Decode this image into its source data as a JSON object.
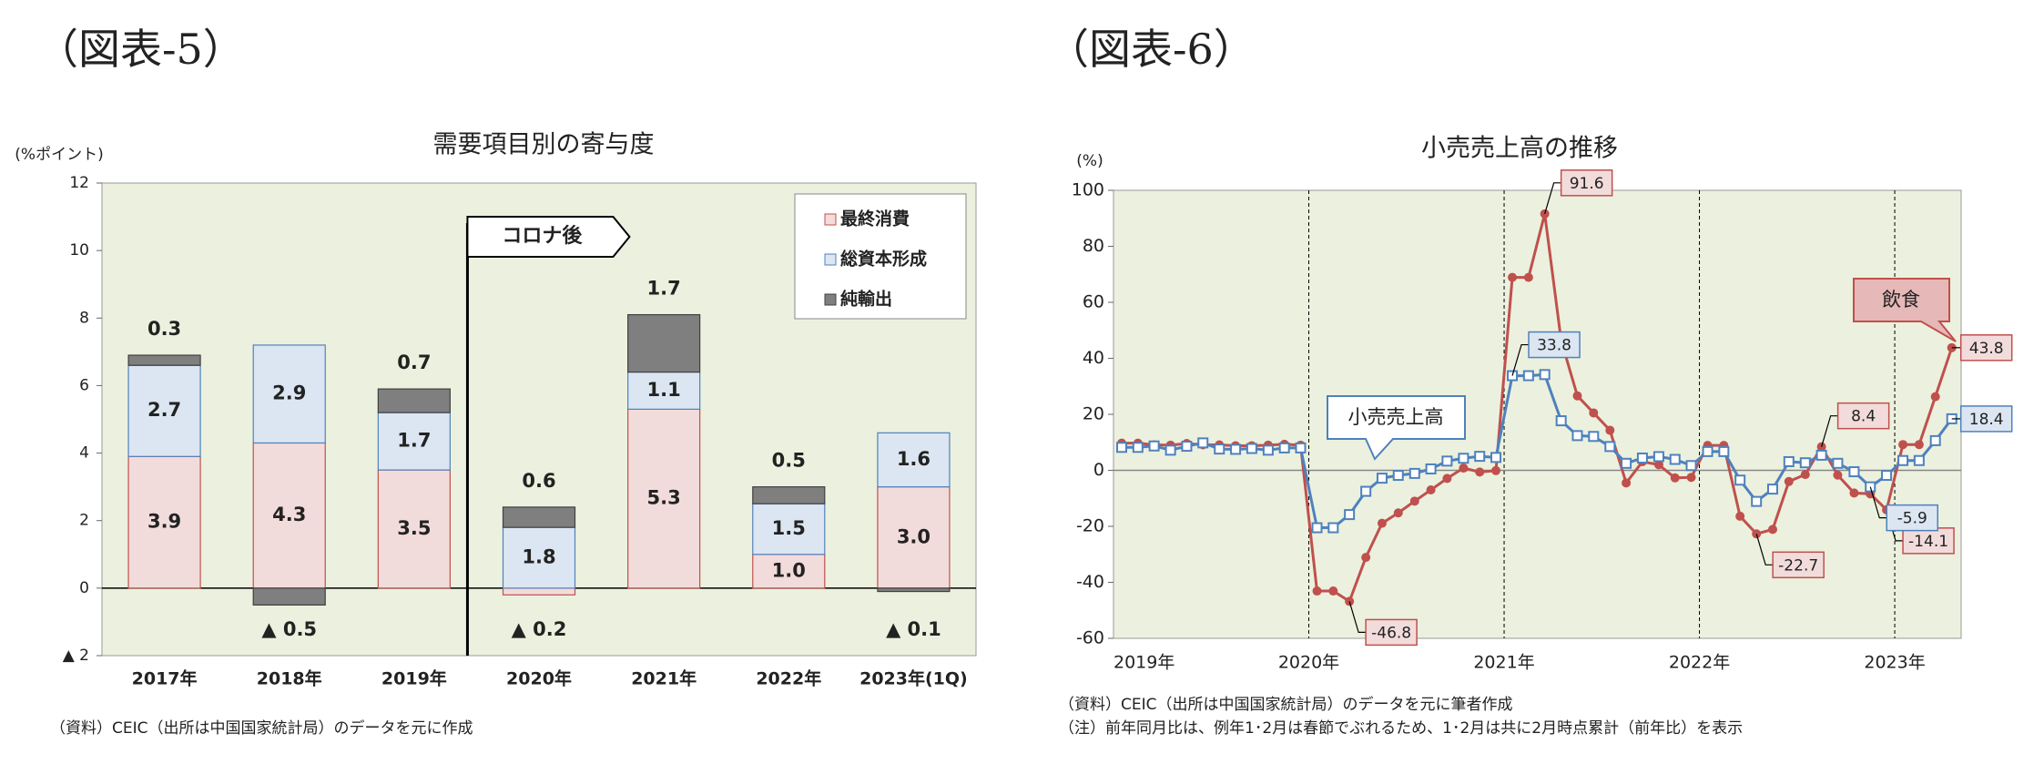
{
  "chart_data": [
    {
      "type": "bar",
      "stacked": true,
      "page_title": "（図表-5）",
      "title": "需要項目別の寄与度",
      "y_label": "(%ポイント)",
      "categories": [
        "2017年",
        "2018年",
        "2019年",
        "2020年",
        "2021年",
        "2022年",
        "2023年(1Q)"
      ],
      "series": [
        {
          "name": "最終消費",
          "color": "#f2dcdb",
          "edge": "#c0504d",
          "values": [
            3.9,
            4.3,
            3.5,
            -0.2,
            5.3,
            1.0,
            3.0
          ],
          "value_labels": [
            "3.9",
            "4.3",
            "3.5",
            "▲ 0.2",
            "5.3",
            "1.0",
            "3.0"
          ]
        },
        {
          "name": "総資本形成",
          "color": "#dce6f2",
          "edge": "#4f81bd",
          "values": [
            2.7,
            2.9,
            1.7,
            1.8,
            1.1,
            1.5,
            1.6
          ],
          "value_labels": [
            "2.7",
            "2.9",
            "1.7",
            "1.8",
            "1.1",
            "1.5",
            "1.6"
          ]
        },
        {
          "name": "純輸出",
          "color": "#7f7f7f",
          "edge": "#404040",
          "values": [
            0.3,
            -0.5,
            0.7,
            0.6,
            1.7,
            0.5,
            -0.1
          ],
          "value_labels": [
            "0.3",
            "▲ 0.5",
            "0.7",
            "0.6",
            "1.7",
            "0.5",
            "▲ 0.1"
          ]
        }
      ],
      "ylim": [
        -2,
        12
      ],
      "yticks": [
        {
          "value": -2,
          "label": "▲ 2"
        },
        0,
        2,
        4,
        6,
        8,
        10,
        12
      ],
      "annotation": "コロナ後",
      "legend": "upper right",
      "source": "（資料）CEIC（出所は中国国家統計局）のデータを元に作成"
    },
    {
      "type": "line",
      "page_title": "（図表-6）",
      "title": "小売売上高の推移",
      "y_label": "(%)",
      "x": [
        2019.042,
        2019.125,
        2019.208,
        2019.292,
        2019.375,
        2019.458,
        2019.542,
        2019.625,
        2019.708,
        2019.792,
        2019.875,
        2019.958,
        2020.042,
        2020.125,
        2020.208,
        2020.292,
        2020.375,
        2020.458,
        2020.542,
        2020.625,
        2020.708,
        2020.792,
        2020.875,
        2020.958,
        2021.042,
        2021.125,
        2021.208,
        2021.292,
        2021.375,
        2021.458,
        2021.542,
        2021.625,
        2021.708,
        2021.792,
        2021.875,
        2021.958,
        2022.042,
        2022.125,
        2022.208,
        2022.292,
        2022.375,
        2022.458,
        2022.542,
        2022.625,
        2022.708,
        2022.792,
        2022.875,
        2022.958,
        2023.042,
        2023.125,
        2023.208,
        2023.292
      ],
      "series": [
        {
          "name": "飲食",
          "color": "#c0504d",
          "marker": "circle",
          "values": [
            9.7,
            9.7,
            9.1,
            9.0,
            9.6,
            9.1,
            9.1,
            8.8,
            8.8,
            9.0,
            9.3,
            9.0,
            -43.1,
            -43.1,
            -46.8,
            -31.1,
            -18.9,
            -15.2,
            -11.0,
            -7.0,
            -2.9,
            0.8,
            -0.6,
            -0.1,
            68.9,
            68.9,
            91.6,
            46.4,
            26.6,
            20.5,
            14.3,
            -4.5,
            3.1,
            2.0,
            -2.7,
            -2.5,
            8.9,
            8.9,
            -16.4,
            -22.7,
            -21.1,
            -4.0,
            -1.5,
            8.4,
            -1.7,
            -8.1,
            -8.4,
            -14.1,
            9.2,
            9.2,
            26.3,
            43.8
          ],
          "value_labels": [
            null,
            null,
            null,
            null,
            null,
            null,
            null,
            null,
            null,
            null,
            null,
            null,
            null,
            null,
            "-46.8",
            null,
            null,
            null,
            null,
            null,
            null,
            null,
            null,
            null,
            null,
            null,
            "91.6",
            null,
            null,
            null,
            null,
            null,
            null,
            null,
            null,
            null,
            null,
            null,
            null,
            "-22.7",
            null,
            null,
            null,
            "8.4",
            null,
            null,
            null,
            "-14.1",
            null,
            null,
            null,
            "43.8"
          ]
        },
        {
          "name": "小売売上高",
          "color": "#4f81bd",
          "marker": "square",
          "values": [
            8.2,
            8.2,
            8.7,
            7.2,
            8.6,
            9.8,
            7.6,
            7.5,
            7.8,
            7.2,
            8.0,
            8.0,
            -20.5,
            -20.5,
            -15.8,
            -7.5,
            -2.8,
            -1.8,
            -1.1,
            0.5,
            3.3,
            4.3,
            5.0,
            4.6,
            33.8,
            33.8,
            34.2,
            17.7,
            12.4,
            12.1,
            8.5,
            2.5,
            4.4,
            4.9,
            3.9,
            1.7,
            6.7,
            6.7,
            -3.5,
            -11.1,
            -6.7,
            3.1,
            2.7,
            5.4,
            2.5,
            -0.5,
            -5.9,
            -1.8,
            3.5,
            3.5,
            10.6,
            18.4
          ],
          "value_labels": [
            null,
            null,
            null,
            null,
            null,
            null,
            null,
            null,
            null,
            null,
            null,
            null,
            null,
            null,
            null,
            null,
            null,
            null,
            null,
            null,
            null,
            null,
            null,
            null,
            "33.8",
            null,
            null,
            null,
            null,
            null,
            null,
            null,
            null,
            null,
            null,
            null,
            null,
            null,
            null,
            null,
            null,
            null,
            null,
            null,
            null,
            null,
            "-5.9",
            null,
            null,
            null,
            null,
            "18.4"
          ]
        }
      ],
      "xlim": [
        2019,
        2023.34
      ],
      "xticks": [
        {
          "value": 2019,
          "label": "2019年"
        },
        {
          "value": 2020,
          "label": "2020年"
        },
        {
          "value": 2021,
          "label": "2021年"
        },
        {
          "value": 2022,
          "label": "2022年"
        },
        {
          "value": 2023,
          "label": "2023年"
        }
      ],
      "ylim": [
        -60,
        100
      ],
      "yticks": [
        -60,
        -40,
        -20,
        0,
        20,
        40,
        60,
        80,
        100
      ],
      "grid": true,
      "notes": [
        "（資料）CEIC（出所は中国国家統計局）のデータを元に筆者作成",
        "（注）前年同月比は、例年1･2月は春節でぶれるため、1･2月は共に2月時点累計（前年比）を表示"
      ]
    }
  ]
}
